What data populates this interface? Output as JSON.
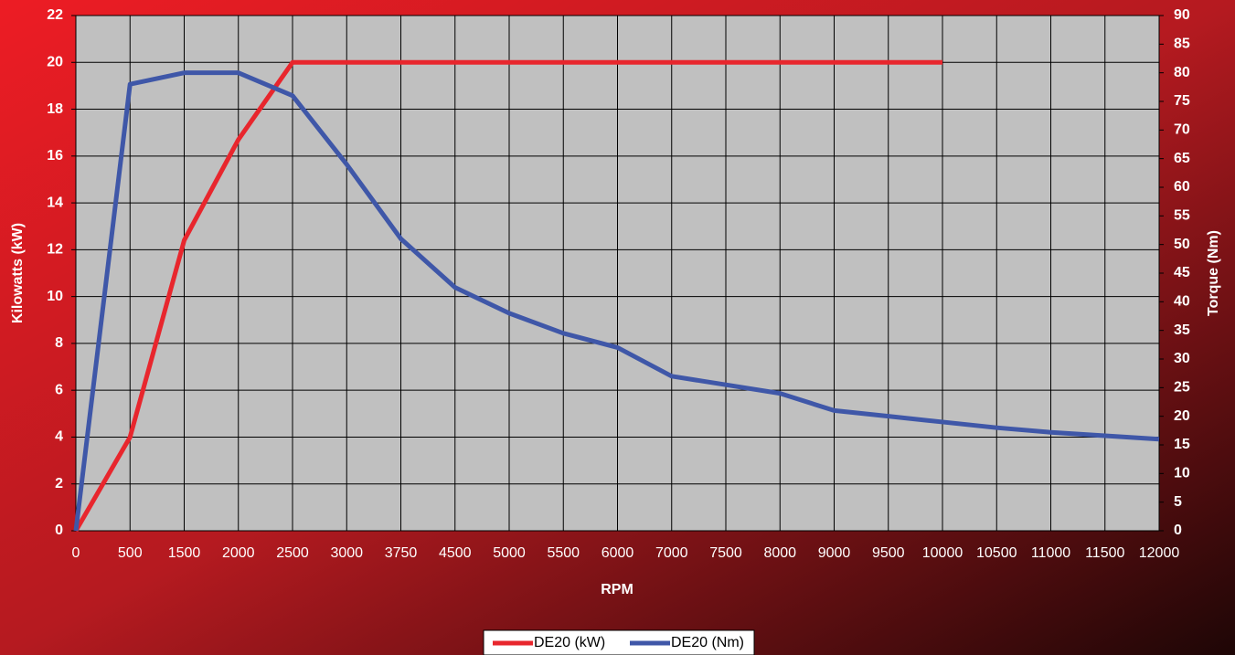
{
  "chart_data": {
    "type": "line",
    "x_label": "RPM",
    "y_label": "Kilowatts (kW)",
    "y2_label": "Torque (Nm)",
    "categories": [
      "0",
      "500",
      "1500",
      "2000",
      "2500",
      "3000",
      "3750",
      "4500",
      "5000",
      "5500",
      "6000",
      "7000",
      "7500",
      "8000",
      "9000",
      "9500",
      "10000",
      "10500",
      "11000",
      "11500",
      "12000"
    ],
    "series": [
      {
        "name": "DE20 (kW)",
        "color": "#e8262d",
        "values": [
          0,
          4.0,
          12.4,
          16.7,
          20,
          20,
          20,
          20,
          20,
          20,
          20,
          20,
          20,
          20,
          20,
          20,
          20,
          null,
          null,
          null,
          null
        ]
      },
      {
        "name": "DE20 (Nm)",
        "color": "#3f57a8",
        "axis": "y2",
        "values": [
          0,
          78,
          80,
          80,
          76,
          64,
          51,
          42.5,
          38,
          34.5,
          32,
          27,
          25.5,
          24,
          21,
          20,
          19,
          18,
          17.2,
          16.6,
          16
        ]
      }
    ],
    "ylim": [
      0,
      22
    ],
    "yticks": [
      0,
      2,
      4,
      6,
      8,
      10,
      12,
      14,
      16,
      18,
      20,
      22
    ],
    "y2lim": [
      0,
      90
    ],
    "y2ticks": [
      0,
      5,
      10,
      15,
      20,
      25,
      30,
      35,
      40,
      45,
      50,
      55,
      60,
      65,
      70,
      75,
      80,
      85,
      90
    ],
    "grid": true,
    "legend": "bottom"
  }
}
